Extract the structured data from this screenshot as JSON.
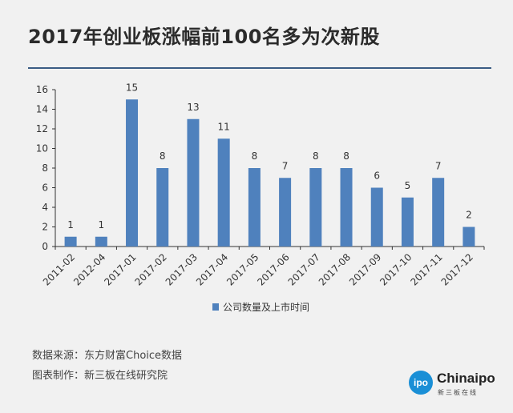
{
  "title": "2017年创业板涨幅前100名多为次新股",
  "chart_data": {
    "type": "bar",
    "title": "2017年创业板涨幅前100名多为次新股",
    "categories": [
      "2011-02",
      "2012-04",
      "2017-01",
      "2017-02",
      "2017-03",
      "2017-04",
      "2017-05",
      "2017-06",
      "2017-07",
      "2017-08",
      "2017-09",
      "2017-10",
      "2017-11",
      "2017-12"
    ],
    "series": [
      {
        "name": "公司数量及上市时间",
        "values": [
          1,
          1,
          15,
          8,
          13,
          11,
          8,
          7,
          8,
          8,
          6,
          5,
          7,
          2
        ]
      }
    ],
    "ylim": [
      0,
      16
    ],
    "yticks": [
      0,
      2,
      4,
      6,
      8,
      10,
      12,
      14,
      16
    ],
    "xlabel": "",
    "ylabel": "",
    "legend": "bottom-center",
    "bar_color": "#4f81bd",
    "axis_color": "#333333"
  },
  "footer": {
    "source": "数据来源：东方财富Choice数据",
    "maker": "图表制作：新三板在线研究院"
  },
  "logo": {
    "badge": "ipo",
    "name": "Chinaipo",
    "sub": "新三板在线"
  }
}
